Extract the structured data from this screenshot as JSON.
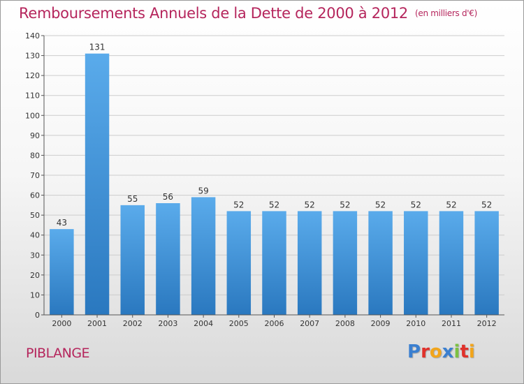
{
  "title": "Remboursements Annuels de la Dette de 2000 à 2012",
  "title_unit": "(en milliers d'€)",
  "commune": "PIBLANGE",
  "brand": {
    "text": "Proxiti",
    "letter_colors": [
      "#3a7fd0",
      "#e0312b",
      "#f2a51b",
      "#3a7fd0",
      "#7cc142",
      "#e0312b",
      "#f2a51b"
    ]
  },
  "colors": {
    "title": "#b5255c",
    "bar_top": "#5aabeb",
    "bar_bottom": "#2a78bf",
    "grid": "#cccccc"
  },
  "chart_data": {
    "type": "bar",
    "categories": [
      "2000",
      "2001",
      "2002",
      "2003",
      "2004",
      "2005",
      "2006",
      "2007",
      "2008",
      "2009",
      "2010",
      "2011",
      "2012"
    ],
    "values": [
      43,
      131,
      55,
      56,
      59,
      52,
      52,
      52,
      52,
      52,
      52,
      52,
      52
    ],
    "ylim": [
      0,
      140
    ],
    "yticks": [
      0,
      10,
      20,
      30,
      40,
      50,
      60,
      70,
      80,
      90,
      100,
      110,
      120,
      130,
      140
    ],
    "grid": true,
    "legend": false,
    "xlabel": "",
    "ylabel": ""
  }
}
